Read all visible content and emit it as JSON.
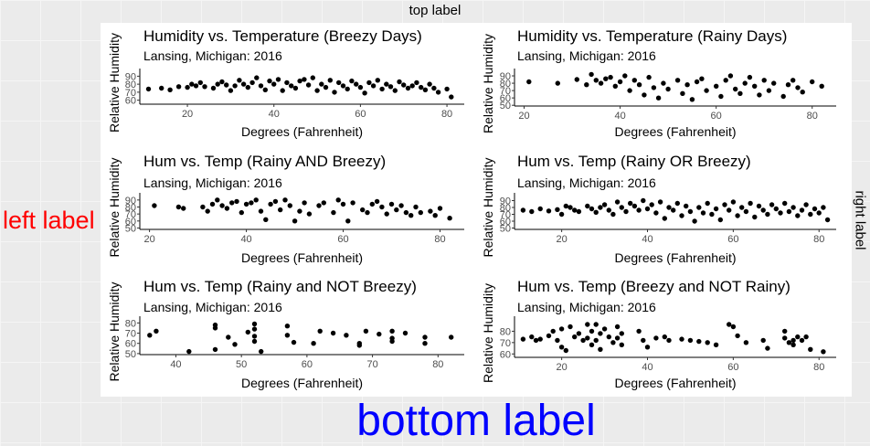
{
  "labels": {
    "top": "top label",
    "left": "left label",
    "right": "right label",
    "bottom": "bottom label"
  },
  "chart_data": [
    {
      "type": "scatter",
      "title": "Humidity vs. Temperature (Breezy Days)",
      "subtitle": "Lansing, Michigan: 2016",
      "xlabel": "Degrees (Fahrenheit)",
      "ylabel": "Relative Humidity",
      "xlim": [
        9,
        84
      ],
      "ylim": [
        55,
        95
      ],
      "xticks": [
        20,
        40,
        60,
        80
      ],
      "yticks": [
        60,
        70,
        80,
        90
      ],
      "points": [
        [
          11,
          74
        ],
        [
          14,
          75
        ],
        [
          16,
          73
        ],
        [
          18,
          77
        ],
        [
          20,
          76
        ],
        [
          21,
          80
        ],
        [
          22,
          78
        ],
        [
          23,
          82
        ],
        [
          24,
          77
        ],
        [
          26,
          75
        ],
        [
          27,
          80
        ],
        [
          28,
          83
        ],
        [
          29,
          79
        ],
        [
          30,
          72
        ],
        [
          31,
          78
        ],
        [
          32,
          85
        ],
        [
          33,
          80
        ],
        [
          34,
          76
        ],
        [
          35,
          82
        ],
        [
          36,
          88
        ],
        [
          37,
          78
        ],
        [
          38,
          73
        ],
        [
          39,
          84
        ],
        [
          40,
          80
        ],
        [
          41,
          86
        ],
        [
          42,
          72
        ],
        [
          43,
          82
        ],
        [
          44,
          78
        ],
        [
          45,
          75
        ],
        [
          46,
          84
        ],
        [
          47,
          86
        ],
        [
          48,
          79
        ],
        [
          49,
          88
        ],
        [
          50,
          72
        ],
        [
          51,
          80
        ],
        [
          52,
          76
        ],
        [
          53,
          85
        ],
        [
          54,
          70
        ],
        [
          55,
          82
        ],
        [
          56,
          78
        ],
        [
          57,
          74
        ],
        [
          58,
          84
        ],
        [
          59,
          80
        ],
        [
          60,
          76
        ],
        [
          61,
          69
        ],
        [
          62,
          82
        ],
        [
          63,
          78
        ],
        [
          64,
          85
        ],
        [
          65,
          74
        ],
        [
          66,
          80
        ],
        [
          67,
          77
        ],
        [
          68,
          72
        ],
        [
          69,
          83
        ],
        [
          70,
          79
        ],
        [
          71,
          75
        ],
        [
          72,
          78
        ],
        [
          73,
          82
        ],
        [
          74,
          76
        ],
        [
          75,
          73
        ],
        [
          76,
          80
        ],
        [
          77,
          75
        ],
        [
          78,
          70
        ],
        [
          80,
          74
        ],
        [
          81,
          64
        ]
      ]
    },
    {
      "type": "scatter",
      "title": "Humidity vs. Temperature (Rainy Days)",
      "subtitle": "Lansing, Michigan: 2016",
      "xlabel": "Degrees (Fahrenheit)",
      "ylabel": "Relative Humidity",
      "xlim": [
        18,
        85
      ],
      "ylim": [
        49,
        95
      ],
      "xticks": [
        20,
        40,
        60,
        80
      ],
      "yticks": [
        50,
        60,
        70,
        80,
        90
      ],
      "points": [
        [
          21,
          82
        ],
        [
          27,
          80
        ],
        [
          31,
          85
        ],
        [
          33,
          78
        ],
        [
          34,
          92
        ],
        [
          35,
          84
        ],
        [
          36,
          80
        ],
        [
          37,
          86
        ],
        [
          38,
          88
        ],
        [
          39,
          76
        ],
        [
          40,
          82
        ],
        [
          41,
          90
        ],
        [
          42,
          70
        ],
        [
          43,
          84
        ],
        [
          44,
          78
        ],
        [
          45,
          64
        ],
        [
          46,
          88
        ],
        [
          47,
          74
        ],
        [
          48,
          60
        ],
        [
          49,
          80
        ],
        [
          50,
          72
        ],
        [
          52,
          84
        ],
        [
          53,
          66
        ],
        [
          54,
          78
        ],
        [
          55,
          58
        ],
        [
          56,
          82
        ],
        [
          57,
          86
        ],
        [
          58,
          70
        ],
        [
          60,
          76
        ],
        [
          61,
          62
        ],
        [
          62,
          84
        ],
        [
          63,
          90
        ],
        [
          64,
          72
        ],
        [
          65,
          66
        ],
        [
          66,
          80
        ],
        [
          67,
          88
        ],
        [
          68,
          76
        ],
        [
          69,
          64
        ],
        [
          70,
          84
        ],
        [
          71,
          70
        ],
        [
          72,
          80
        ],
        [
          74,
          62
        ],
        [
          75,
          78
        ],
        [
          76,
          84
        ],
        [
          77,
          74
        ],
        [
          78,
          68
        ],
        [
          80,
          82
        ],
        [
          82,
          76
        ]
      ]
    },
    {
      "type": "scatter",
      "title": "Hum vs. Temp (Rainy AND Breezy)",
      "subtitle": "Lansing, Michigan: 2016",
      "xlabel": "Degrees (Fahrenheit)",
      "ylabel": "Relative Humidity",
      "xlim": [
        18,
        85
      ],
      "ylim": [
        48,
        95
      ],
      "xticks": [
        20,
        40,
        60,
        80
      ],
      "yticks": [
        50,
        60,
        70,
        80,
        90
      ],
      "points": [
        [
          21,
          82
        ],
        [
          26,
          80
        ],
        [
          27,
          78
        ],
        [
          31,
          80
        ],
        [
          32,
          74
        ],
        [
          33,
          84
        ],
        [
          34,
          90
        ],
        [
          35,
          82
        ],
        [
          36,
          78
        ],
        [
          37,
          86
        ],
        [
          38,
          88
        ],
        [
          39,
          72
        ],
        [
          40,
          84
        ],
        [
          41,
          86
        ],
        [
          42,
          90
        ],
        [
          43,
          74
        ],
        [
          44,
          62
        ],
        [
          45,
          84
        ],
        [
          46,
          88
        ],
        [
          47,
          76
        ],
        [
          48,
          90
        ],
        [
          49,
          82
        ],
        [
          50,
          60
        ],
        [
          51,
          74
        ],
        [
          52,
          86
        ],
        [
          53,
          70
        ],
        [
          55,
          82
        ],
        [
          56,
          86
        ],
        [
          58,
          72
        ],
        [
          59,
          90
        ],
        [
          60,
          84
        ],
        [
          61,
          60
        ],
        [
          62,
          86
        ],
        [
          64,
          76
        ],
        [
          65,
          72
        ],
        [
          66,
          84
        ],
        [
          67,
          88
        ],
        [
          68,
          80
        ],
        [
          69,
          70
        ],
        [
          70,
          84
        ],
        [
          71,
          76
        ],
        [
          72,
          82
        ],
        [
          73,
          72
        ],
        [
          74,
          68
        ],
        [
          75,
          80
        ],
        [
          76,
          72
        ],
        [
          78,
          74
        ],
        [
          79,
          68
        ],
        [
          80,
          78
        ],
        [
          82,
          64
        ]
      ]
    },
    {
      "type": "scatter",
      "title": "Hum vs. Temp (Rainy OR Breezy)",
      "subtitle": "Lansing, Michigan: 2016",
      "xlabel": "Degrees (Fahrenheit)",
      "ylabel": "Relative Humidity",
      "xlim": [
        9,
        84
      ],
      "ylim": [
        48,
        96
      ],
      "xticks": [
        20,
        40,
        60,
        80
      ],
      "yticks": [
        50,
        60,
        70,
        80,
        90
      ],
      "points": [
        [
          11,
          76
        ],
        [
          13,
          74
        ],
        [
          15,
          78
        ],
        [
          17,
          75
        ],
        [
          19,
          77
        ],
        [
          20,
          70
        ],
        [
          21,
          82
        ],
        [
          22,
          80
        ],
        [
          23,
          76
        ],
        [
          24,
          74
        ],
        [
          26,
          82
        ],
        [
          27,
          78
        ],
        [
          28,
          73
        ],
        [
          29,
          80
        ],
        [
          30,
          84
        ],
        [
          31,
          76
        ],
        [
          32,
          70
        ],
        [
          33,
          88
        ],
        [
          34,
          80
        ],
        [
          35,
          74
        ],
        [
          36,
          86
        ],
        [
          37,
          82
        ],
        [
          38,
          76
        ],
        [
          39,
          90
        ],
        [
          40,
          78
        ],
        [
          41,
          84
        ],
        [
          42,
          72
        ],
        [
          43,
          88
        ],
        [
          44,
          64
        ],
        [
          45,
          80
        ],
        [
          46,
          76
        ],
        [
          47,
          86
        ],
        [
          48,
          68
        ],
        [
          49,
          82
        ],
        [
          50,
          74
        ],
        [
          51,
          60
        ],
        [
          52,
          80
        ],
        [
          53,
          72
        ],
        [
          54,
          86
        ],
        [
          55,
          70
        ],
        [
          56,
          78
        ],
        [
          57,
          62
        ],
        [
          58,
          84
        ],
        [
          59,
          76
        ],
        [
          60,
          88
        ],
        [
          61,
          68
        ],
        [
          62,
          80
        ],
        [
          63,
          74
        ],
        [
          64,
          86
        ],
        [
          65,
          66
        ],
        [
          66,
          82
        ],
        [
          67,
          76
        ],
        [
          68,
          70
        ],
        [
          69,
          84
        ],
        [
          70,
          78
        ],
        [
          71,
          72
        ],
        [
          72,
          86
        ],
        [
          73,
          74
        ],
        [
          74,
          80
        ],
        [
          75,
          68
        ],
        [
          76,
          76
        ],
        [
          77,
          84
        ],
        [
          78,
          70
        ],
        [
          79,
          78
        ],
        [
          80,
          72
        ],
        [
          81,
          80
        ],
        [
          82,
          62
        ]
      ]
    },
    {
      "type": "scatter",
      "title": "Hum vs. Temp (Rainy and NOT Breezy)",
      "subtitle": "Lansing, Michigan: 2016",
      "xlabel": "Degrees (Fahrenheit)",
      "ylabel": "Relative Humidity",
      "xlim": [
        34.5,
        84
      ],
      "ylim": [
        49,
        83
      ],
      "xticks": [
        40,
        50,
        60,
        70,
        80
      ],
      "yticks": [
        50,
        60,
        70,
        80
      ],
      "points": [
        [
          36,
          68
        ],
        [
          37,
          72
        ],
        [
          42,
          52
        ],
        [
          46,
          78
        ],
        [
          46,
          75
        ],
        [
          46,
          54
        ],
        [
          48,
          66
        ],
        [
          49,
          59
        ],
        [
          51,
          71
        ],
        [
          52,
          79
        ],
        [
          52,
          74
        ],
        [
          52,
          67
        ],
        [
          52,
          62
        ],
        [
          53,
          52
        ],
        [
          57,
          77
        ],
        [
          57,
          68
        ],
        [
          58,
          61
        ],
        [
          61,
          60
        ],
        [
          62,
          72
        ],
        [
          64,
          70
        ],
        [
          66,
          68
        ],
        [
          68,
          60
        ],
        [
          68,
          58
        ],
        [
          69,
          72
        ],
        [
          71,
          69
        ],
        [
          73,
          72
        ],
        [
          73,
          65
        ],
        [
          73,
          62
        ],
        [
          75,
          70
        ],
        [
          78,
          66
        ],
        [
          78,
          60
        ],
        [
          82,
          66
        ]
      ]
    },
    {
      "type": "scatter",
      "title": "Hum vs. Temp (Breezy and NOT Rainy)",
      "subtitle": "Lansing, Michigan: 2016",
      "xlabel": "Degrees (Fahrenheit)",
      "ylabel": "Relative Humidity",
      "xlim": [
        9,
        84
      ],
      "ylim": [
        57,
        90
      ],
      "xticks": [
        20,
        40,
        60,
        80
      ],
      "yticks": [
        60,
        70,
        80
      ],
      "points": [
        [
          11,
          73
        ],
        [
          13,
          75
        ],
        [
          14,
          72
        ],
        [
          15,
          73
        ],
        [
          17,
          76
        ],
        [
          18,
          80
        ],
        [
          19,
          72
        ],
        [
          20,
          82
        ],
        [
          20,
          66
        ],
        [
          21,
          63
        ],
        [
          22,
          84
        ],
        [
          23,
          75
        ],
        [
          24,
          78
        ],
        [
          25,
          72
        ],
        [
          26,
          86
        ],
        [
          26,
          74
        ],
        [
          27,
          80
        ],
        [
          27,
          68
        ],
        [
          28,
          86
        ],
        [
          28,
          72
        ],
        [
          29,
          78
        ],
        [
          29,
          64
        ],
        [
          30,
          82
        ],
        [
          31,
          75
        ],
        [
          32,
          70
        ],
        [
          33,
          84
        ],
        [
          33,
          74
        ],
        [
          34,
          78
        ],
        [
          34,
          68
        ],
        [
          38,
          80
        ],
        [
          39,
          72
        ],
        [
          40,
          66
        ],
        [
          42,
          74
        ],
        [
          44,
          75
        ],
        [
          45,
          72
        ],
        [
          48,
          73
        ],
        [
          50,
          72
        ],
        [
          52,
          71
        ],
        [
          54,
          70
        ],
        [
          56,
          68
        ],
        [
          59,
          86
        ],
        [
          60,
          84
        ],
        [
          61,
          76
        ],
        [
          63,
          70
        ],
        [
          67,
          72
        ],
        [
          68,
          65
        ],
        [
          72,
          80
        ],
        [
          72,
          74
        ],
        [
          73,
          70
        ],
        [
          74,
          72
        ],
        [
          74,
          68
        ],
        [
          75,
          75
        ],
        [
          76,
          72
        ],
        [
          77,
          75
        ],
        [
          78,
          64
        ],
        [
          81,
          62
        ]
      ]
    }
  ]
}
